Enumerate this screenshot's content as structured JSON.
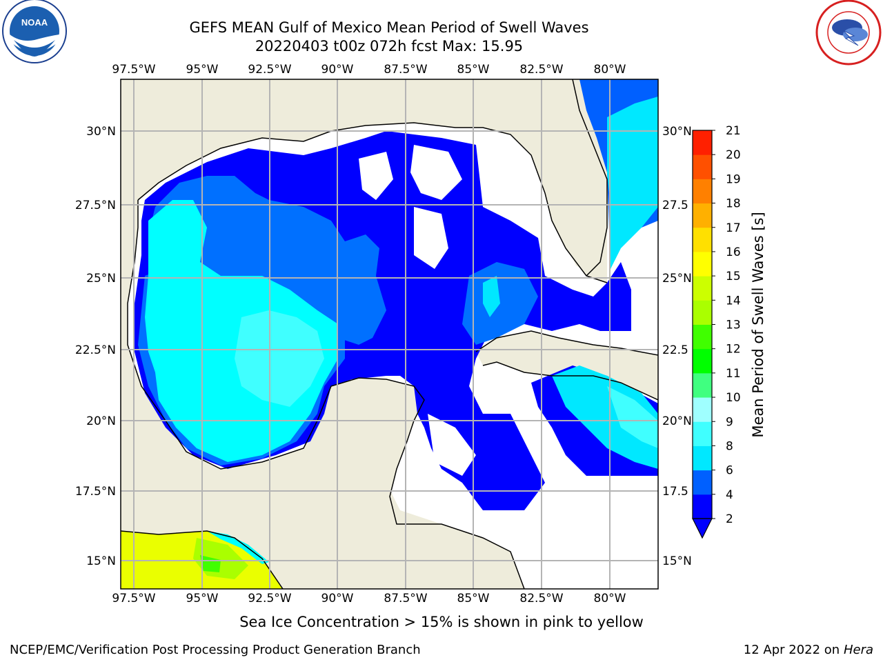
{
  "title": {
    "line1": "GEFS MEAN Gulf of Mexico Mean Period of Swell Waves",
    "line2": "20220403 t00z 072h fcst   Max: 15.95"
  },
  "map": {
    "lon_labels": [
      "97.5°W",
      "95°W",
      "92.5°W",
      "90°W",
      "87.5°W",
      "85°W",
      "82.5°W",
      "80°W"
    ],
    "lat_labels_left": [
      "30°N",
      "27.5°N",
      "25°N",
      "22.5°N",
      "20°N",
      "17.5°N",
      "15°N"
    ],
    "lat_labels_right": [
      "30°N",
      "27.5",
      "25°N",
      "22.5",
      "20°N",
      "17.5",
      "15°N"
    ],
    "colors": {
      "land": "#eeecdb",
      "ocean_mask": "#ffffff",
      "grid": "#b4b4b4",
      "c2": "#0000ff",
      "c4": "#0070ff",
      "c6": "#00ffff",
      "c8": "#3fffff",
      "c9": "#7fffff",
      "c12": "#ccff00",
      "c13": "#aaff00",
      "c14": "#eaff00",
      "c15": "#ffff00",
      "c11": "#00ff00"
    }
  },
  "colorbar": {
    "label": "Mean Period of Swell Waves [s]",
    "ticks": [
      "2",
      "4",
      "6",
      "8",
      "9",
      "10",
      "11",
      "12",
      "13",
      "14",
      "15",
      "16",
      "17",
      "18",
      "19",
      "20",
      "21"
    ],
    "colors": [
      "#0000ff",
      "#0060ff",
      "#00e8ff",
      "#40ffff",
      "#9fffff",
      "#40ff80",
      "#00ff00",
      "#40ff00",
      "#aaff00",
      "#ccff00",
      "#ffff00",
      "#ffe000",
      "#ffb000",
      "#ff8000",
      "#ff5000",
      "#ff2000",
      "#ff0000"
    ]
  },
  "logos": {
    "left": "noara-logo",
    "right": "nws-logo",
    "left_text": "NATIONAL OCEANIC AND ATMOSPHERIC ADMINISTRATION · U.S. DEPARTMENT OF COMMERCE",
    "left_mark": "NOAA",
    "right_text": "NATIONAL WEATHER SERVICE"
  },
  "footer": {
    "note": "Sea Ice Concentration > 15% is shown in pink to yellow",
    "left": "NCEP/EMC/Verification Post Processing Product Generation Branch",
    "right_prefix": "12 Apr 2022 on ",
    "right_host": "Hera"
  }
}
